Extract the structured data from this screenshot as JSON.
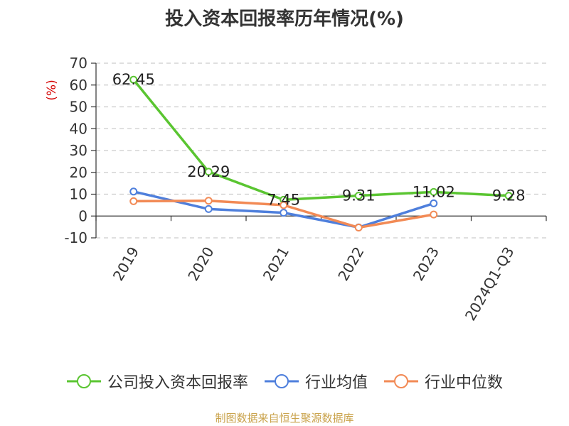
{
  "chart_data": {
    "type": "line",
    "title": "投入资本回报率历年情况(%)",
    "ylabel": "(%)",
    "categories": [
      "2019",
      "2020",
      "2021",
      "2022",
      "2023",
      "2024Q1-Q3"
    ],
    "ylim": [
      -10,
      70
    ],
    "yticks": [
      -10,
      0,
      10,
      20,
      30,
      40,
      50,
      60,
      70
    ],
    "grid": true,
    "legend": "bottom",
    "series": [
      {
        "name": "公司投入资本回报率",
        "color": "#5ac531",
        "values": [
          62.45,
          20.29,
          7.45,
          9.31,
          11.02,
          9.28
        ],
        "labels": [
          "62.45",
          "20.29",
          "7.45",
          "9.31",
          "11.02",
          "9.28"
        ]
      },
      {
        "name": "行业均值",
        "color": "#4e7fdc",
        "values": [
          11.2,
          3.2,
          1.5,
          -5.2,
          5.8,
          null
        ]
      },
      {
        "name": "行业中位数",
        "color": "#f28a55",
        "values": [
          6.8,
          7.0,
          5.0,
          -5.3,
          0.7,
          null
        ]
      }
    ]
  },
  "source": "制图数据来自恒生聚源数据库"
}
